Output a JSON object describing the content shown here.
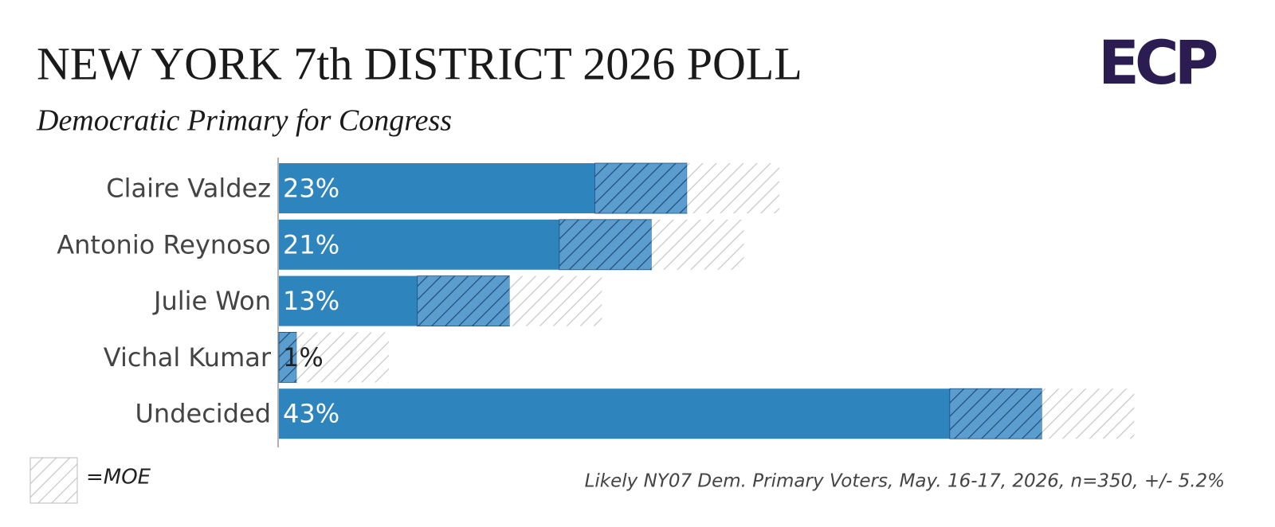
{
  "chart_data": {
    "type": "bar",
    "title": "NEW YORK 7th DISTRICT 2026 POLL",
    "subtitle": "Democratic Primary for Congress",
    "categories": [
      "Claire Valdez",
      "Antonio Reynoso",
      "Julie Won",
      "Vichal Kumar",
      "Undecided"
    ],
    "values": [
      23,
      21,
      13,
      1,
      43
    ],
    "value_labels": [
      "23%",
      "21%",
      "13%",
      "1%",
      "43%"
    ],
    "moe": 5.2,
    "color": "#2e84bc",
    "legend_label": "=MOE",
    "note": "Likely NY07 Dem. Primary Voters, May. 16-17, 2026, n=350, +/- 5.2%",
    "logo": "ECP"
  }
}
